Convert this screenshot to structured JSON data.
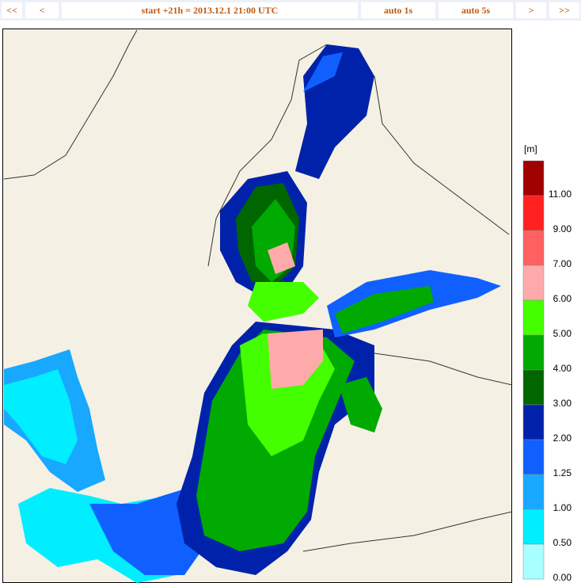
{
  "nav": {
    "first": "<<",
    "prev": "<",
    "status": "start +21h  =  2013.12.1 21:00 UTC",
    "auto1": "auto 1s",
    "auto5": "auto 5s",
    "next": ">",
    "last": ">>"
  },
  "legend": {
    "unit": "[m]",
    "items": [
      {
        "label": "11.00",
        "color": "#a00000"
      },
      {
        "label": "9.00",
        "color": "#ff2020"
      },
      {
        "label": "7.00",
        "color": "#ff6060"
      },
      {
        "label": "6.00",
        "color": "#ffaaaa"
      },
      {
        "label": "5.00",
        "color": "#44ff00"
      },
      {
        "label": "4.00",
        "color": "#00aa00"
      },
      {
        "label": "3.00",
        "color": "#006600"
      },
      {
        "label": "2.00",
        "color": "#0022aa"
      },
      {
        "label": "1.25",
        "color": "#1060ff"
      },
      {
        "label": "1.00",
        "color": "#18a8ff"
      },
      {
        "label": "0.50",
        "color": "#00eeff"
      },
      {
        "label": "0.00",
        "color": "#a8ffff"
      }
    ]
  }
}
